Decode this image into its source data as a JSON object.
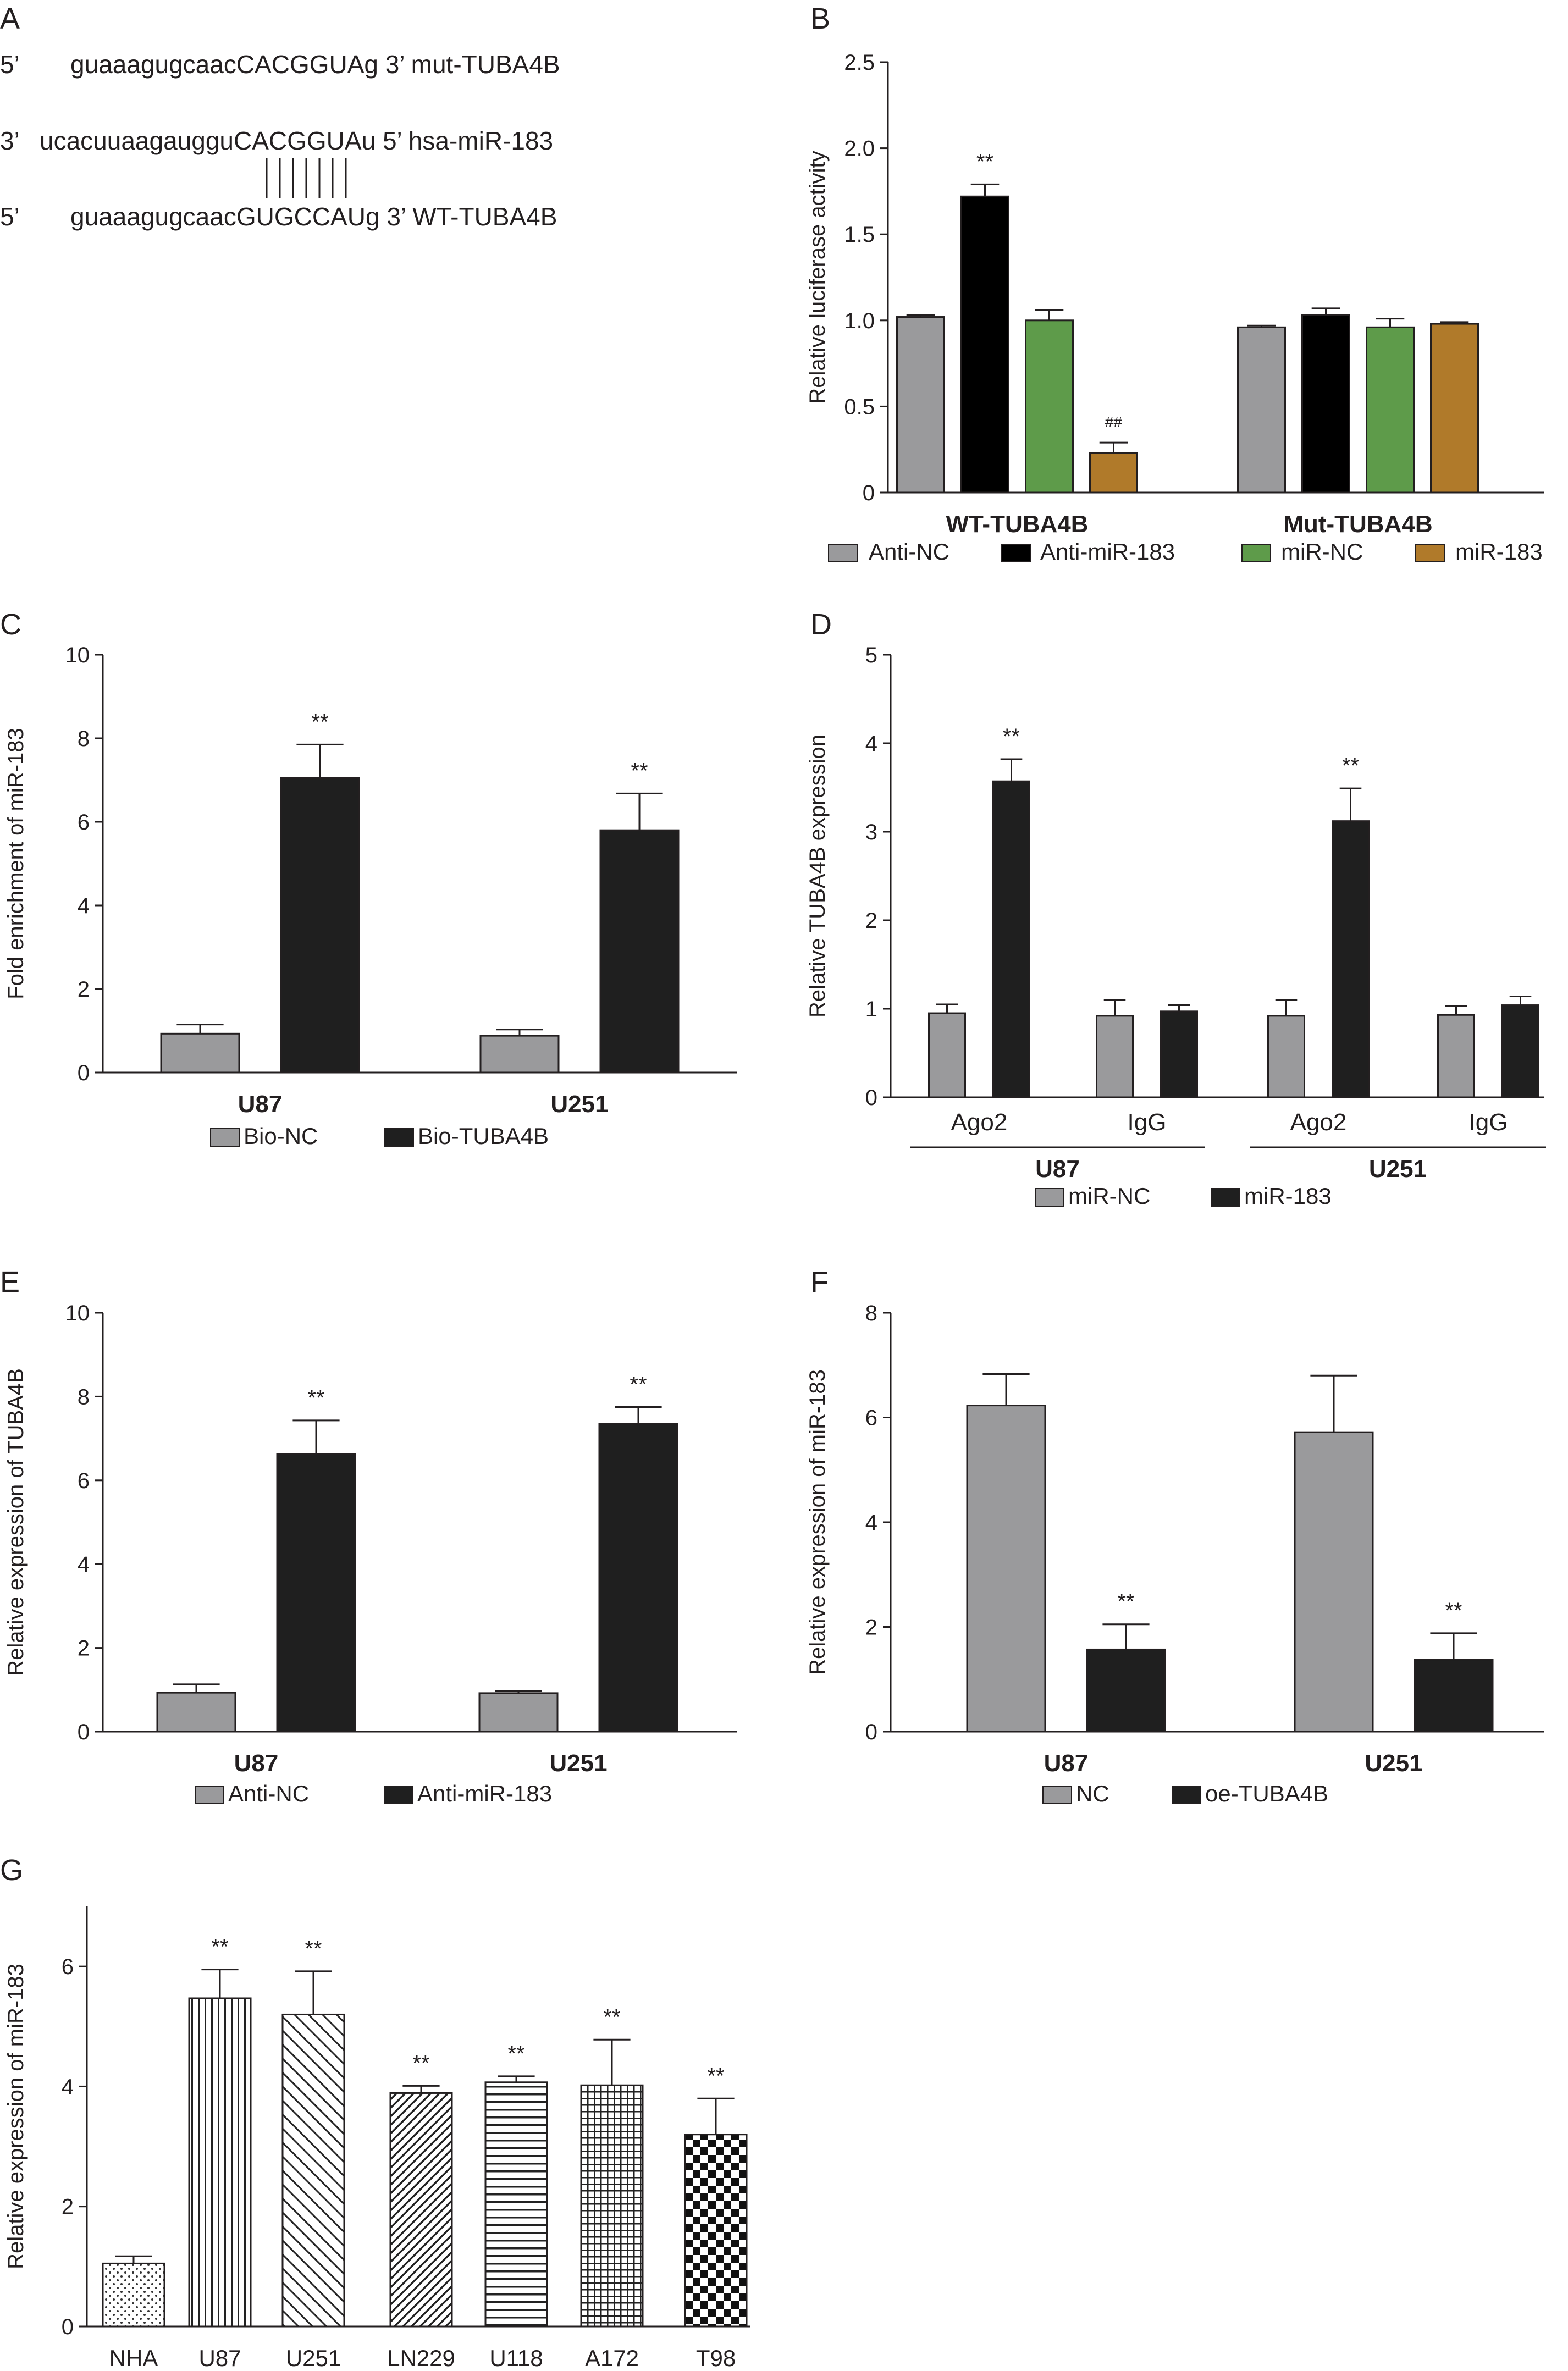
{
  "figure": {
    "panel_letters": [
      "A",
      "B",
      "C",
      "D",
      "E",
      "F",
      "G"
    ]
  },
  "panel_a": {
    "line1": {
      "prefix": "5’",
      "seq": "guaaagugcaacCACGGUAg 3’ mut-TUBA4B"
    },
    "line2": {
      "prefix": "3’",
      "seq": "ucacuuaagauggu",
      "seq_bold": "CACGGUAu 5’ hsa-miR-183"
    },
    "line3": {
      "prefix": "5’",
      "seq": "guaaagugcaacGUGCCAUg 3’ WT-TUBA4B"
    },
    "pair_lines": 7
  },
  "colors": {
    "anti_nc": "#9a9a9c",
    "anti_mir183": "#000000",
    "mir_nc": "#5e9b4a",
    "mir183_b": "#b07a2a",
    "gray": "#9a9a9c",
    "black": "#1f1f1f"
  },
  "chart_data": [
    {
      "panel": "B",
      "type": "bar",
      "ylabel": "Relative luciferase activity",
      "ylim": [
        0,
        2.5
      ],
      "yticks": [
        "0",
        "0.5",
        "1.0",
        "1.5",
        "2.0",
        "2.5"
      ],
      "categories": [
        "WT-TUBA4B",
        "Mut-TUBA4B"
      ],
      "series": [
        {
          "name": "Anti-NC",
          "values": [
            1.02,
            0.96
          ],
          "errors": [
            0.01,
            0.01
          ],
          "color": "#9a9a9c",
          "pattern": "solid"
        },
        {
          "name": "Anti-miR-183",
          "values": [
            1.72,
            1.03
          ],
          "errors": [
            0.07,
            0.04
          ],
          "color": "#000000",
          "pattern": "solid"
        },
        {
          "name": "miR-NC",
          "values": [
            1.0,
            0.96
          ],
          "errors": [
            0.06,
            0.05
          ],
          "color": "#5e9b4a",
          "pattern": "solid"
        },
        {
          "name": "miR-183",
          "values": [
            0.23,
            0.98
          ],
          "errors": [
            0.06,
            0.01
          ],
          "color": "#b07a2a",
          "pattern": "solid"
        }
      ],
      "annotations": [
        {
          "category": 0,
          "series": 1,
          "text": "**"
        },
        {
          "category": 0,
          "series": 3,
          "text": "##"
        }
      ],
      "legend": "bottom"
    },
    {
      "panel": "C",
      "type": "bar",
      "ylabel": "Fold enrichment of miR-183",
      "ylim": [
        0,
        10
      ],
      "yticks": [
        "0",
        "2",
        "4",
        "6",
        "8",
        "10"
      ],
      "categories": [
        "U87",
        "U251"
      ],
      "series": [
        {
          "name": "Bio-NC",
          "values": [
            0.93,
            0.88
          ],
          "errors": [
            0.22,
            0.15
          ],
          "color": "#9a9a9c",
          "pattern": "solid"
        },
        {
          "name": "Bio-TUBA4B",
          "values": [
            7.05,
            5.8
          ],
          "errors": [
            0.8,
            0.88
          ],
          "color": "#1f1f1f",
          "pattern": "solid"
        }
      ],
      "annotations": [
        {
          "category": 0,
          "series": 1,
          "text": "**"
        },
        {
          "category": 1,
          "series": 1,
          "text": "**"
        }
      ],
      "legend": "bottom"
    },
    {
      "panel": "D",
      "type": "bar",
      "ylabel": "Relative TUBA4B expression",
      "ylim": [
        0,
        5
      ],
      "yticks": [
        "0",
        "1",
        "2",
        "3",
        "4",
        "5"
      ],
      "categories": [
        "Ago2",
        "IgG",
        "Ago2",
        "IgG"
      ],
      "groups": [
        {
          "label": "U87",
          "categories": [
            0,
            1
          ]
        },
        {
          "label": "U251",
          "categories": [
            2,
            3
          ]
        }
      ],
      "series": [
        {
          "name": "miR-NC",
          "values": [
            0.95,
            0.92,
            0.92,
            0.93
          ],
          "errors": [
            0.1,
            0.18,
            0.18,
            0.1
          ],
          "color": "#9a9a9c",
          "pattern": "solid"
        },
        {
          "name": "miR-183",
          "values": [
            3.57,
            0.97,
            3.12,
            1.04
          ],
          "errors": [
            0.25,
            0.07,
            0.37,
            0.1
          ],
          "color": "#1f1f1f",
          "pattern": "solid"
        }
      ],
      "annotations": [
        {
          "category": 0,
          "series": 1,
          "text": "**"
        },
        {
          "category": 2,
          "series": 1,
          "text": "**"
        }
      ],
      "legend": "bottom"
    },
    {
      "panel": "E",
      "type": "bar",
      "ylabel": "Relative expression of TUBA4B",
      "ylim": [
        0,
        10
      ],
      "yticks": [
        "0",
        "2",
        "4",
        "6",
        "8",
        "10"
      ],
      "categories": [
        "U87",
        "U251"
      ],
      "series": [
        {
          "name": "Anti-NC",
          "values": [
            0.93,
            0.92
          ],
          "errors": [
            0.2,
            0.05
          ],
          "color": "#9a9a9c",
          "pattern": "solid"
        },
        {
          "name": "Anti-miR-183",
          "values": [
            6.63,
            7.35
          ],
          "errors": [
            0.8,
            0.4
          ],
          "color": "#1f1f1f",
          "pattern": "solid"
        }
      ],
      "annotations": [
        {
          "category": 0,
          "series": 1,
          "text": "**"
        },
        {
          "category": 1,
          "series": 1,
          "text": "**"
        }
      ],
      "legend": "bottom"
    },
    {
      "panel": "F",
      "type": "bar",
      "ylabel": "Relative expression of miR-183",
      "ylim": [
        0,
        8
      ],
      "yticks": [
        "0",
        "2",
        "4",
        "6",
        "8"
      ],
      "categories": [
        "U87",
        "U251"
      ],
      "series": [
        {
          "name": "NC",
          "values": [
            6.23,
            5.72
          ],
          "errors": [
            0.6,
            1.08
          ],
          "color": "#9a9a9c",
          "pattern": "solid"
        },
        {
          "name": "oe-TUBA4B",
          "values": [
            1.57,
            1.38
          ],
          "errors": [
            0.48,
            0.5
          ],
          "color": "#1f1f1f",
          "pattern": "solid"
        }
      ],
      "annotations": [
        {
          "category": 0,
          "series": 1,
          "text": "**"
        },
        {
          "category": 1,
          "series": 1,
          "text": "**"
        }
      ],
      "legend": "bottom"
    },
    {
      "panel": "G",
      "type": "bar",
      "ylabel": "Relative expression of miR-183",
      "ylim": [
        0,
        7
      ],
      "yticks": [
        "0",
        "2",
        "4",
        "6"
      ],
      "categories": [
        "NHA",
        "U87",
        "U251",
        "LN229",
        "U118",
        "A172",
        "T98"
      ],
      "series": [
        {
          "name": "",
          "values": [
            1.05,
            5.47,
            5.2,
            3.89,
            4.07,
            4.02,
            3.2
          ],
          "errors": [
            0.12,
            0.48,
            0.72,
            0.12,
            0.1,
            0.76,
            0.6
          ],
          "patterns": [
            "dots",
            "vertical",
            "diagonal",
            "diagonal-dense",
            "horizontal",
            "grid",
            "checker"
          ]
        }
      ],
      "annotations": [
        {
          "category": 1,
          "text": "**"
        },
        {
          "category": 2,
          "text": "**"
        },
        {
          "category": 3,
          "text": "**"
        },
        {
          "category": 4,
          "text": "**"
        },
        {
          "category": 5,
          "text": "**"
        },
        {
          "category": 6,
          "text": "**"
        }
      ]
    }
  ]
}
